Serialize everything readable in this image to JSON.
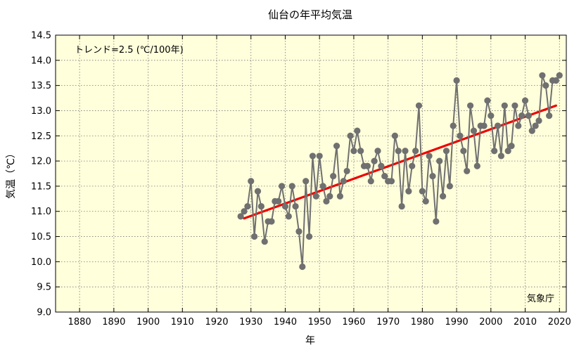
{
  "chart_data": {
    "type": "line",
    "title": "仙台の年平均気温",
    "xlabel": "年",
    "ylabel": "気温（℃）",
    "trend_label": "トレンド=2.5 (℃/100年)",
    "source_label": "気象庁",
    "xlim": [
      1873,
      2022
    ],
    "ylim": [
      9.0,
      14.5
    ],
    "x_ticks": [
      1880,
      1890,
      1900,
      1910,
      1920,
      1930,
      1940,
      1950,
      1960,
      1970,
      1980,
      1990,
      2000,
      2010,
      2020
    ],
    "x_tick_labels": [
      "1880",
      "1890",
      "1900",
      "1910",
      "1920",
      "1930",
      "1940",
      "1950",
      "1960",
      "1970",
      "1980",
      "1990",
      "2000",
      "2010",
      "2020"
    ],
    "y_ticks": [
      9.0,
      9.5,
      10.0,
      10.5,
      11.0,
      11.5,
      12.0,
      12.5,
      13.0,
      13.5,
      14.0,
      14.5
    ],
    "y_tick_labels": [
      "9.0",
      "9.5",
      "10.0",
      "10.5",
      "11.0",
      "11.5",
      "12.0",
      "12.5",
      "13.0",
      "13.5",
      "14.0",
      "14.5"
    ],
    "grid": true,
    "series": [
      {
        "x": [
          1927,
          1928,
          1929,
          1930,
          1931,
          1932,
          1933,
          1934,
          1935,
          1936,
          1937,
          1938,
          1939,
          1940,
          1941,
          1942,
          1943,
          1944,
          1945,
          1946,
          1947,
          1948,
          1949,
          1950,
          1951,
          1952,
          1953,
          1954,
          1955,
          1956,
          1957,
          1958,
          1959,
          1960,
          1961,
          1962,
          1963,
          1964,
          1965,
          1966,
          1967,
          1968,
          1969,
          1970,
          1971,
          1972,
          1973,
          1974,
          1975,
          1976,
          1977,
          1978,
          1979,
          1980,
          1981,
          1982,
          1983,
          1984,
          1985,
          1986,
          1987,
          1988,
          1989,
          1990,
          1991,
          1992,
          1993,
          1994,
          1995,
          1996,
          1997,
          1998,
          1999,
          2000,
          2001,
          2002,
          2003,
          2004,
          2005,
          2006,
          2007,
          2008,
          2009,
          2010,
          2011,
          2012,
          2013,
          2014,
          2015,
          2016,
          2017,
          2018,
          2019,
          2020
        ],
        "y": [
          10.9,
          11.0,
          11.1,
          11.6,
          10.5,
          11.4,
          11.1,
          10.4,
          10.8,
          10.8,
          11.2,
          11.2,
          11.5,
          11.1,
          10.9,
          11.5,
          11.1,
          10.6,
          9.9,
          11.6,
          10.5,
          12.1,
          11.3,
          12.1,
          11.5,
          11.2,
          11.3,
          11.7,
          12.3,
          11.3,
          11.6,
          11.8,
          12.5,
          12.2,
          12.6,
          12.2,
          11.9,
          11.9,
          11.6,
          12.0,
          12.2,
          11.9,
          11.7,
          11.6,
          11.6,
          12.5,
          12.2,
          11.1,
          12.2,
          11.4,
          11.9,
          12.2,
          13.1,
          11.4,
          11.2,
          12.1,
          11.7,
          10.8,
          12.0,
          11.3,
          12.2,
          11.5,
          12.7,
          13.6,
          12.5,
          12.2,
          11.8,
          13.1,
          12.6,
          11.9,
          12.7,
          12.7,
          13.2,
          12.9,
          12.2,
          12.7,
          12.1,
          13.1,
          12.2,
          12.3,
          13.1,
          12.7,
          12.9,
          13.2,
          12.9,
          12.6,
          12.7,
          12.8,
          13.7,
          13.5,
          12.9,
          13.6,
          13.6,
          13.7
        ],
        "color": "#707070"
      },
      {
        "type": "trend",
        "x": [
          1928,
          2019
        ],
        "y": [
          10.86,
          13.1
        ],
        "color": "#ee0000"
      }
    ]
  }
}
